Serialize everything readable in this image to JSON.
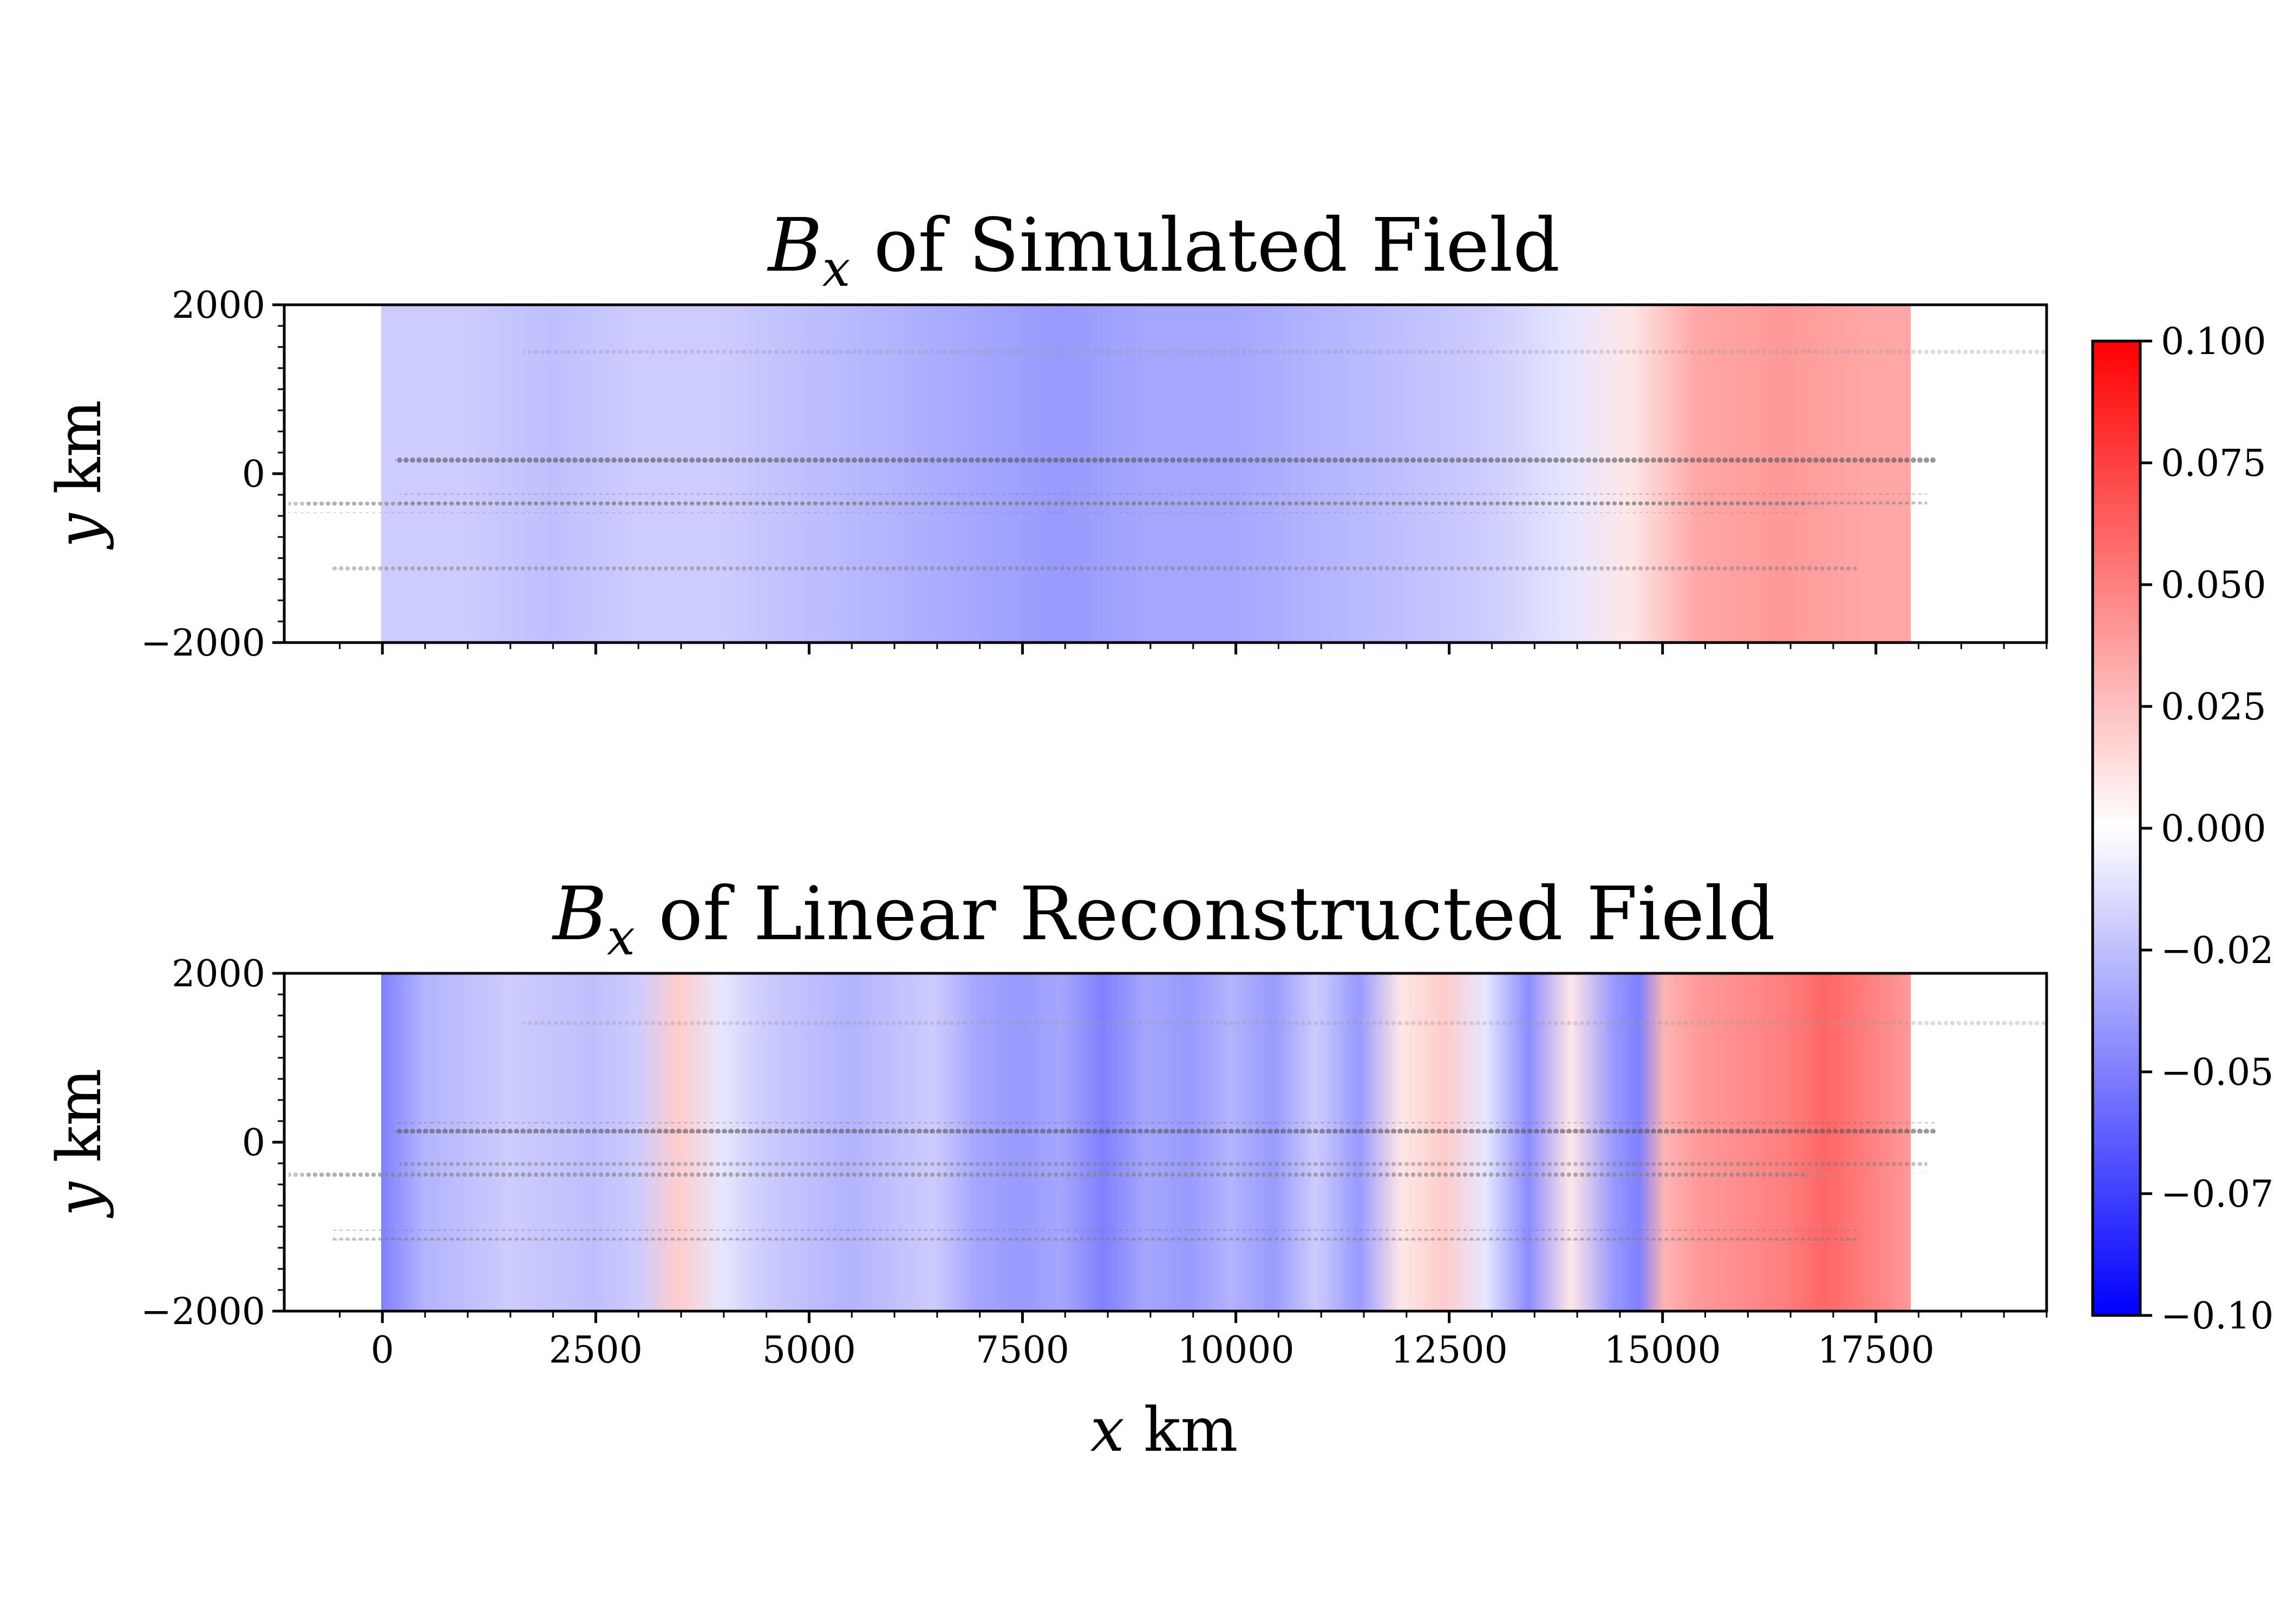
{
  "chart_data": [
    {
      "type": "heatmap",
      "title_symbol": "B",
      "title_subscript": "x",
      "title_text": " of Simulated Field",
      "ylabel_var": "y",
      "ylabel_unit": " km",
      "xlim": [
        -1150,
        19500
      ],
      "ylim": [
        -2000,
        2000
      ],
      "yticks": [
        "2000",
        "0",
        "−2000"
      ],
      "yticks_values": [
        2000,
        0,
        -2000
      ],
      "xticks_values": [
        0,
        2500,
        5000,
        7500,
        10000,
        12500,
        15000,
        17500
      ],
      "show_xtick_labels": false,
      "field_extent_x": [
        0,
        18000
      ],
      "field_x_nodes": [
        0,
        1000,
        2000,
        3000,
        4000,
        5000,
        6000,
        7000,
        8000,
        9000,
        10000,
        11000,
        12000,
        13000,
        14000,
        14700,
        15500,
        16500,
        17500,
        18000
      ],
      "field_values": [
        -0.02,
        -0.02,
        -0.025,
        -0.02,
        -0.02,
        -0.025,
        -0.03,
        -0.035,
        -0.04,
        -0.035,
        -0.035,
        -0.03,
        -0.025,
        -0.02,
        -0.01,
        0.01,
        0.035,
        0.04,
        0.035,
        0.035
      ],
      "tracks": [
        {
          "x_range": [
            1650,
            19500
          ],
          "y": 1450,
          "shade": "light"
        },
        {
          "x_range": [
            150,
            18200
          ],
          "y": 170,
          "shade": "dark"
        },
        {
          "x_range": [
            -900,
            17000
          ],
          "y": -350,
          "shade": "light"
        },
        {
          "x_range": [
            200,
            18100
          ],
          "y": -300,
          "shade": "mid"
        },
        {
          "x_range": [
            -1100,
            16700
          ],
          "y": -400,
          "shade": "mid"
        },
        {
          "x_range": [
            -600,
            17300
          ],
          "y": -1100,
          "shade": "mid"
        }
      ]
    },
    {
      "type": "heatmap",
      "title_symbol": "B",
      "title_subscript": "x",
      "title_text": " of Linear Reconstructed Field",
      "ylabel_var": "y",
      "ylabel_unit": " km",
      "xlabel_var": "x",
      "xlabel_unit": " km",
      "xlim": [
        -1150,
        19500
      ],
      "ylim": [
        -2000,
        2000
      ],
      "yticks": [
        "2000",
        "0",
        "−2000"
      ],
      "yticks_values": [
        2000,
        0,
        -2000
      ],
      "xticks": [
        "0",
        "2500",
        "5000",
        "7500",
        "10000",
        "12500",
        "15000",
        "17500"
      ],
      "xticks_values": [
        0,
        2500,
        5000,
        7500,
        10000,
        12500,
        15000,
        17500
      ],
      "show_xtick_labels": true,
      "field_extent_x": [
        0,
        18000
      ],
      "field_x_nodes": [
        0,
        500,
        1500,
        2500,
        3000,
        3500,
        4000,
        4500,
        5500,
        6500,
        7000,
        7500,
        8000,
        8500,
        9000,
        9500,
        10000,
        10500,
        11000,
        11500,
        12000,
        12500,
        13000,
        13500,
        14000,
        14500,
        14800,
        15100,
        15500,
        16000,
        16500,
        17000,
        17500,
        18000
      ],
      "field_values": [
        -0.05,
        -0.03,
        -0.02,
        -0.025,
        -0.02,
        0.02,
        -0.01,
        -0.02,
        -0.03,
        -0.02,
        -0.035,
        -0.04,
        -0.035,
        -0.05,
        -0.035,
        -0.04,
        -0.03,
        -0.04,
        -0.02,
        -0.04,
        0.01,
        0.02,
        -0.01,
        -0.045,
        0.01,
        -0.04,
        -0.05,
        0.03,
        0.04,
        0.045,
        0.05,
        0.06,
        0.05,
        0.04
      ],
      "tracks": [
        {
          "x_range": [
            1650,
            19500
          ],
          "y": 1450,
          "shade": "light"
        },
        {
          "x_range": [
            150,
            18200
          ],
          "y": 170,
          "shade": "dark"
        },
        {
          "x_range": [
            -900,
            17000
          ],
          "y": -350,
          "shade": "light"
        },
        {
          "x_range": [
            200,
            18100
          ],
          "y": -300,
          "shade": "mid"
        },
        {
          "x_range": [
            -1100,
            16700
          ],
          "y": -400,
          "shade": "mid"
        },
        {
          "x_range": [
            -600,
            17300
          ],
          "y": -1100,
          "shade": "mid"
        }
      ]
    }
  ],
  "colorbar": {
    "range": [
      -0.1,
      0.1
    ],
    "colors": [
      "#0000ff",
      "#ffffff",
      "#ff0000"
    ],
    "ticks": [
      "0.100",
      "0.075",
      "0.050",
      "0.025",
      "0.000",
      "−0.025",
      "−0.050",
      "−0.075",
      "−0.100"
    ],
    "tick_values": [
      0.1,
      0.075,
      0.05,
      0.025,
      0,
      -0.025,
      -0.05,
      -0.075,
      -0.1
    ]
  }
}
